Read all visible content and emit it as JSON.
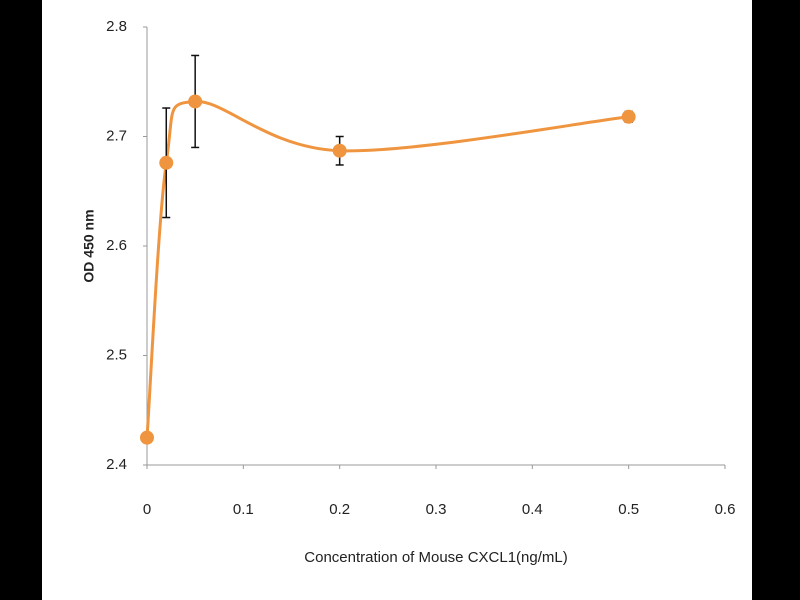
{
  "chart_data": {
    "type": "scatter",
    "xlabel": "Concentration of Mouse CXCL1(ng/mL)",
    "ylabel": "OD 450 nm",
    "x": [
      0,
      0.02,
      0.05,
      0.2,
      0.5
    ],
    "series": [
      {
        "name": "OD",
        "color": "#f0953f",
        "values": [
          2.425,
          2.676,
          2.732,
          2.687,
          2.718
        ],
        "errors": [
          0,
          0.05,
          0.042,
          0.013,
          0.005
        ]
      }
    ],
    "xlim": [
      0,
      0.6
    ],
    "xticks": [
      0,
      0.1,
      0.2,
      0.3,
      0.4,
      0.5,
      0.6
    ],
    "ylim": [
      2.4,
      2.8
    ],
    "yticks": [
      2.4,
      2.5,
      2.6,
      2.7,
      2.8
    ],
    "smooth": true,
    "grid": false
  }
}
